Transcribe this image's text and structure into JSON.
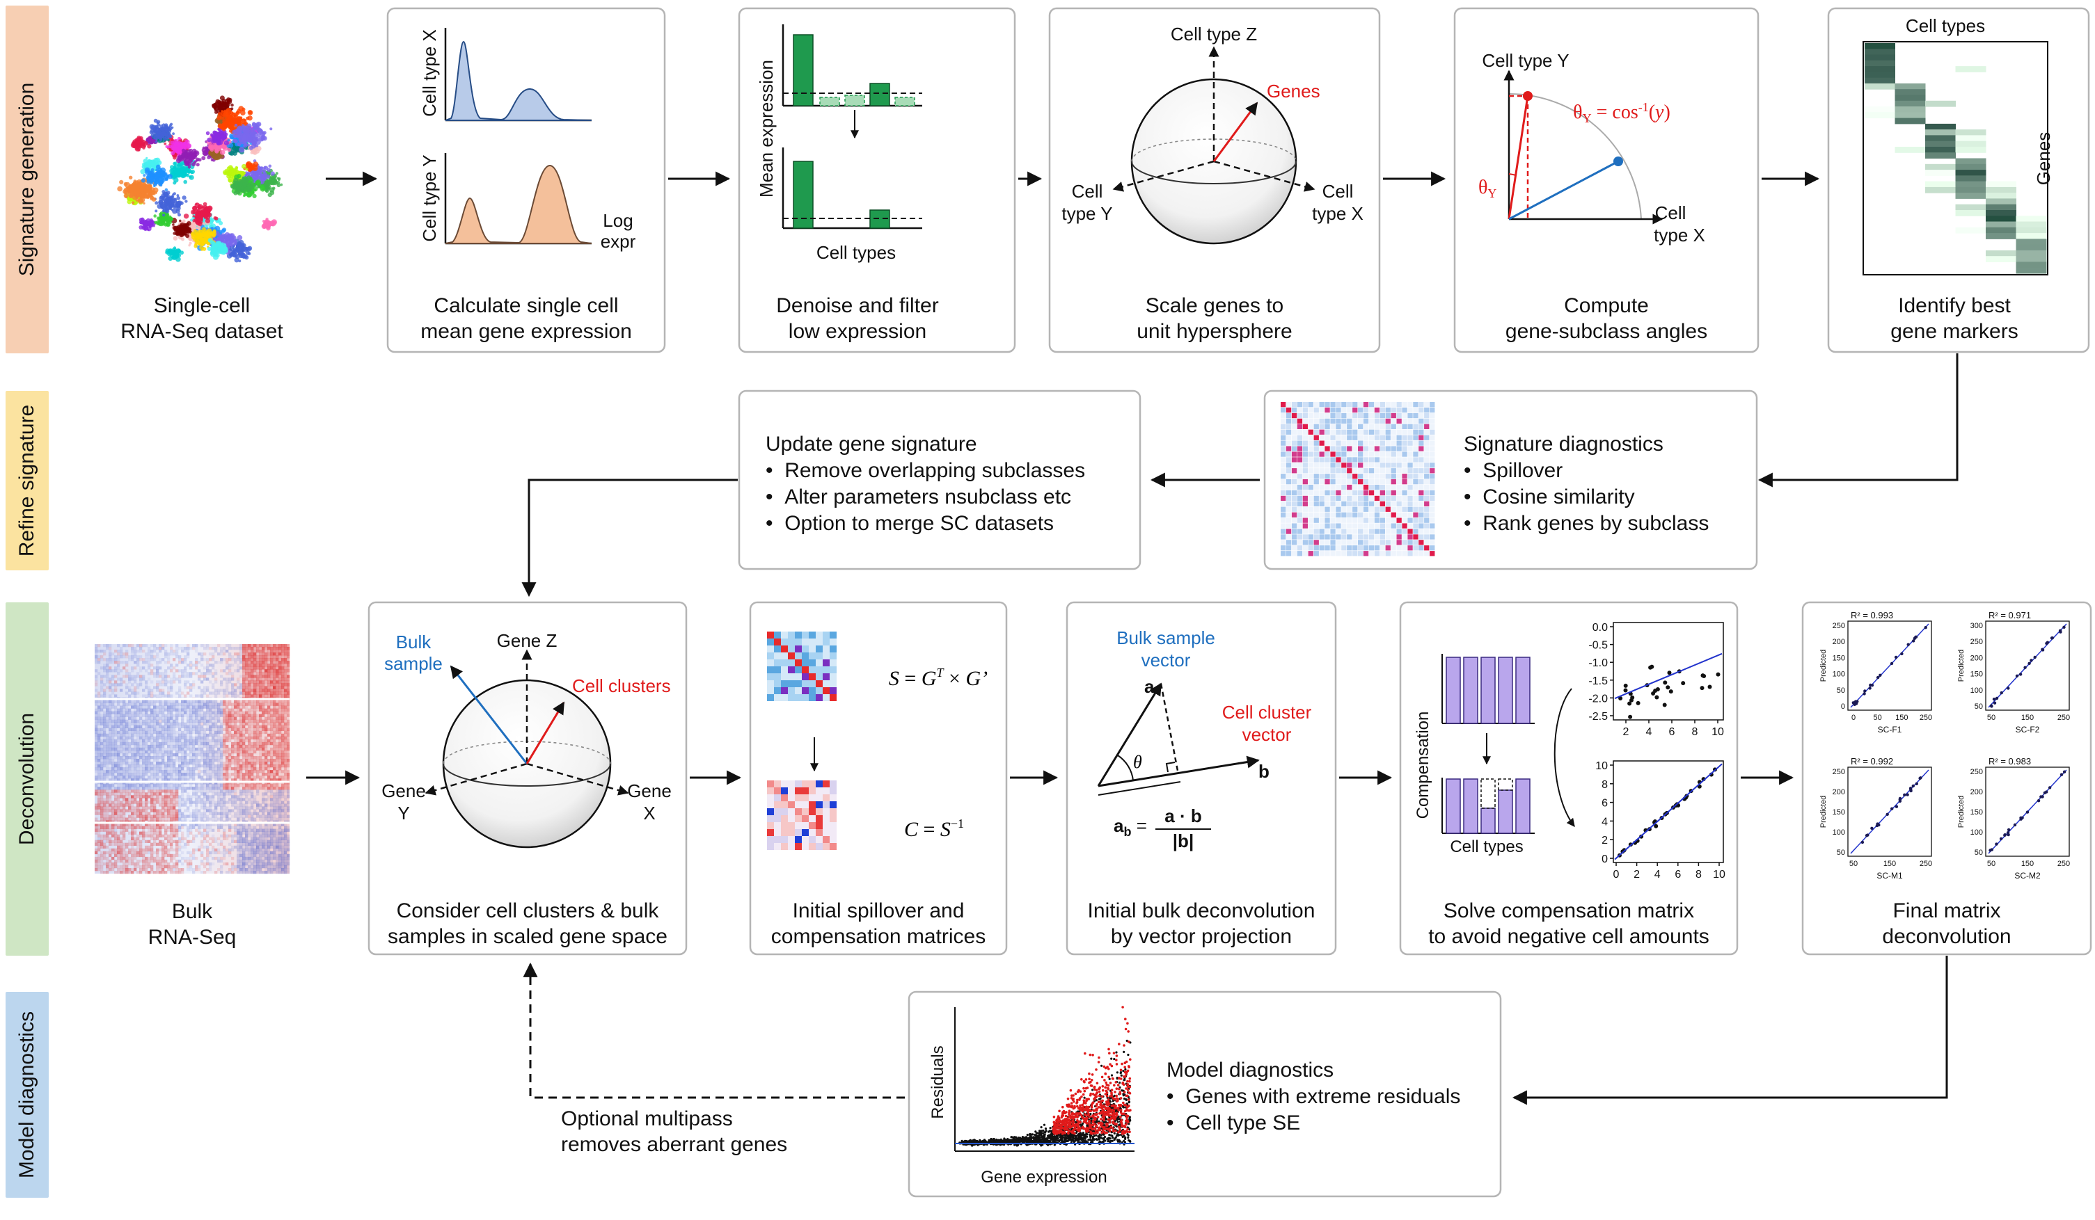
{
  "bands": {
    "signature_generation": {
      "label": "Signature generation",
      "color": "#f7cfb3"
    },
    "refine_signature": {
      "label": "Refine signature",
      "color": "#fbe3a0"
    },
    "deconvolution": {
      "label": "Deconvolution",
      "color": "#cfe6c4"
    },
    "model_diagnostics": {
      "label": "Model diagnostics",
      "color": "#bcd6ee"
    }
  },
  "row1": {
    "umap": {
      "caption1": "Single-cell",
      "caption2": "RNA-Seq dataset"
    },
    "mean_expr": {
      "caption1": "Calculate single cell",
      "caption2": "mean gene expression",
      "ylabel_top": "Cell type X",
      "ylabel_bottom": "Cell type Y",
      "xlabel1": "Log",
      "xlabel2": "expr"
    },
    "denoise": {
      "caption1": "Denoise and filter",
      "caption2": "low expression",
      "ylabel": "Mean expression",
      "xlabel": "Cell types"
    },
    "sphere": {
      "caption1": "Scale genes to",
      "caption2": "unit hypersphere",
      "axis_z": "Cell type Z",
      "axis_y1": "Cell",
      "axis_y2": "type Y",
      "axis_x1": "Cell",
      "axis_x2": "type X",
      "genes": "Genes"
    },
    "angles": {
      "caption1": "Compute",
      "caption2": "gene-subclass angles",
      "axis_y": "Cell type Y",
      "axis_x1": "Cell",
      "axis_x2": "type X"
    },
    "markers": {
      "caption1": "Identify best",
      "caption2": "gene markers",
      "top_label": "Cell types",
      "side_label": "Genes"
    }
  },
  "row2": {
    "update": {
      "title": "Update gene signature",
      "bullets": [
        "Remove overlapping subclasses",
        "Alter parameters nsubclass etc",
        "Option to merge SC datasets"
      ]
    },
    "diagnostics": {
      "title": "Signature diagnostics",
      "bullets": [
        "Spillover",
        "Cosine similarity",
        "Rank genes by subclass"
      ]
    }
  },
  "row3": {
    "bulk": {
      "caption1": "Bulk",
      "caption2": "RNA-Seq"
    },
    "gene_space": {
      "caption1": "Consider cell clusters & bulk",
      "caption2": "samples in scaled gene space",
      "axis_z": "Gene Z",
      "axis_y1": "Gene",
      "axis_y2": "Y",
      "axis_x1": "Gene",
      "axis_x2": "X",
      "bulk1": "Bulk",
      "bulk2": "sample",
      "clusters": "Cell clusters"
    },
    "spillover": {
      "caption1": "Initial spillover and",
      "caption2": "compensation matrices"
    },
    "projection": {
      "caption1": "Initial bulk deconvolution",
      "caption2": "by vector projection",
      "bulk1": "Bulk sample",
      "bulk2": "vector",
      "cluster1": "Cell cluster",
      "cluster2": "vector",
      "a": "a",
      "b": "b",
      "theta": "θ"
    },
    "compensation": {
      "caption1": "Solve compensation matrix",
      "caption2": "to avoid negative cell amounts",
      "ylabel": "Compensation",
      "xlabel": "Cell types",
      "top_yticks": [
        "0.0",
        "-0.5",
        "-1.0",
        "-1.5",
        "-2.0",
        "-2.5"
      ],
      "top_xticks": [
        "2",
        "4",
        "6",
        "8",
        "10"
      ],
      "bot_yticks": [
        "10",
        "8",
        "6",
        "4",
        "2",
        "0"
      ],
      "bot_xticks": [
        "0",
        "2",
        "4",
        "6",
        "8",
        "10"
      ]
    },
    "final": {
      "caption1": "Final matrix",
      "caption2": "deconvolution",
      "panels": [
        {
          "r2": "R² = 0.993",
          "xlabel": "SC-F1",
          "ylabel": "Predicted",
          "yticks": [
            "250",
            "200",
            "150",
            "100",
            "50",
            "0"
          ],
          "xticks": [
            "0",
            "50",
            "150",
            "250"
          ]
        },
        {
          "r2": "R² = 0.971",
          "xlabel": "SC-F2",
          "ylabel": "Predicted",
          "yticks": [
            "300",
            "250",
            "200",
            "150",
            "100",
            "50"
          ],
          "xticks": [
            "50",
            "150",
            "250"
          ]
        },
        {
          "r2": "R² = 0.992",
          "xlabel": "SC-M1",
          "ylabel": "Predicted",
          "yticks": [
            "250",
            "200",
            "150",
            "100",
            "50"
          ],
          "xticks": [
            "50",
            "150",
            "250"
          ]
        },
        {
          "r2": "R² = 0.983",
          "xlabel": "SC-M2",
          "ylabel": "Predicted",
          "yticks": [
            "250",
            "200",
            "150",
            "100",
            "50"
          ],
          "xticks": [
            "50",
            "150",
            "250"
          ]
        }
      ]
    }
  },
  "row4": {
    "diag": {
      "title": "Model diagnostics",
      "bullets": [
        "Genes with extreme residuals",
        "Cell type SE"
      ],
      "ylabel": "Residuals",
      "xlabel": "Gene expression"
    },
    "multipass": {
      "line1": "Optional multipass",
      "line2": "removes aberrant genes"
    }
  },
  "colors": {
    "green": "#1f9a4e",
    "blue_fill": "#b8cbe9",
    "orange_fill": "#f4c09b",
    "purple": "#b9a6ec",
    "red": "#e01b1b",
    "blue_line": "#1f6fbf"
  }
}
